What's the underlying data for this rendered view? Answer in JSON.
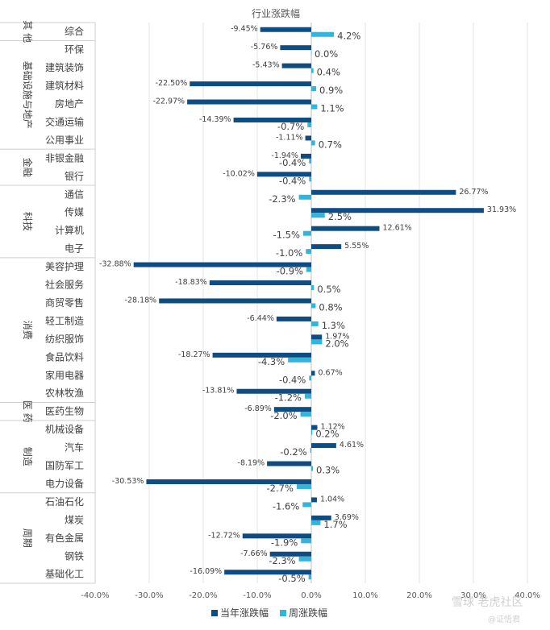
{
  "chart_data": {
    "type": "bar",
    "orientation": "horizontal",
    "title": "行业涨跌幅",
    "xlim": [
      -40,
      40
    ],
    "x_ticks": [
      -40,
      -30,
      -20,
      -10,
      0,
      10,
      20,
      30,
      40
    ],
    "x_tick_labels": [
      "-40.0%",
      "-30.0%",
      "-20.0%",
      "-10.0%",
      "0.0%",
      "10.0%",
      "20.0%",
      "30.0%",
      "40.0%"
    ],
    "grid": true,
    "legend_position": "bottom",
    "categories": [
      {
        "group": "其他",
        "name": "综合",
        "annual": -9.45,
        "weekly": 4.2
      },
      {
        "group": "基础设施与地产",
        "name": "环保",
        "annual": -5.76,
        "weekly": 0.0
      },
      {
        "group": "基础设施与地产",
        "name": "建筑装饰",
        "annual": -5.43,
        "weekly": 0.4
      },
      {
        "group": "基础设施与地产",
        "name": "建筑材料",
        "annual": -22.5,
        "weekly": 0.9
      },
      {
        "group": "基础设施与地产",
        "name": "房地产",
        "annual": -22.97,
        "weekly": 1.1
      },
      {
        "group": "基础设施与地产",
        "name": "交通运输",
        "annual": -14.39,
        "weekly": -0.7
      },
      {
        "group": "基础设施与地产",
        "name": "公用事业",
        "annual": -1.11,
        "weekly": 0.7
      },
      {
        "group": "金融",
        "name": "非银金融",
        "annual": -1.94,
        "weekly": -0.4
      },
      {
        "group": "金融",
        "name": "银行",
        "annual": -10.02,
        "weekly": -0.4
      },
      {
        "group": "科技",
        "name": "通信",
        "annual": 26.77,
        "weekly": -2.3
      },
      {
        "group": "科技",
        "name": "传媒",
        "annual": 31.93,
        "weekly": 2.5
      },
      {
        "group": "科技",
        "name": "计算机",
        "annual": 12.61,
        "weekly": -1.5
      },
      {
        "group": "科技",
        "name": "电子",
        "annual": 5.55,
        "weekly": -1.0
      },
      {
        "group": "消费",
        "name": "美容护理",
        "annual": -32.88,
        "weekly": -0.9
      },
      {
        "group": "消费",
        "name": "社会服务",
        "annual": -18.83,
        "weekly": 0.5
      },
      {
        "group": "消费",
        "name": "商贸零售",
        "annual": -28.18,
        "weekly": 0.8
      },
      {
        "group": "消费",
        "name": "轻工制造",
        "annual": -6.44,
        "weekly": 1.3
      },
      {
        "group": "消费",
        "name": "纺织服饰",
        "annual": 1.97,
        "weekly": 2.0
      },
      {
        "group": "消费",
        "name": "食品饮料",
        "annual": -18.27,
        "weekly": -4.3
      },
      {
        "group": "消费",
        "name": "家用电器",
        "annual": 0.67,
        "weekly": -0.4
      },
      {
        "group": "消费",
        "name": "农林牧渔",
        "annual": -13.81,
        "weekly": -1.2
      },
      {
        "group": "医药",
        "name": "医药生物",
        "annual": -6.89,
        "weekly": -2.0
      },
      {
        "group": "制造",
        "name": "机械设备",
        "annual": 1.12,
        "weekly": 0.2
      },
      {
        "group": "制造",
        "name": "汽车",
        "annual": 4.61,
        "weekly": -0.2
      },
      {
        "group": "制造",
        "name": "国防军工",
        "annual": -8.19,
        "weekly": 0.3
      },
      {
        "group": "制造",
        "name": "电力设备",
        "annual": -30.53,
        "weekly": -2.7
      },
      {
        "group": "周期",
        "name": "石油石化",
        "annual": 1.04,
        "weekly": -1.6
      },
      {
        "group": "周期",
        "name": "煤炭",
        "annual": 3.69,
        "weekly": 1.7
      },
      {
        "group": "周期",
        "name": "有色金属",
        "annual": -12.72,
        "weekly": -1.9
      },
      {
        "group": "周期",
        "name": "钢铁",
        "annual": -7.66,
        "weekly": -2.3
      },
      {
        "group": "周期",
        "name": "基础化工",
        "annual": -16.09,
        "weekly": -0.5
      }
    ],
    "groups": [
      {
        "label": "其 他"
      },
      {
        "label": "基础设施与地产"
      },
      {
        "label": "金融"
      },
      {
        "label": "科技"
      },
      {
        "label": "消费"
      },
      {
        "label": "医 药"
      },
      {
        "label": "制造"
      },
      {
        "label": "周期"
      }
    ],
    "series": [
      {
        "key": "annual",
        "name": "当年涨跌幅",
        "color": "#0f4c81"
      },
      {
        "key": "weekly",
        "name": "周涨跌幅",
        "color": "#34b4d8"
      }
    ]
  },
  "watermark": {
    "main": "雪球 老虎社区",
    "sub": "@证悟君"
  }
}
